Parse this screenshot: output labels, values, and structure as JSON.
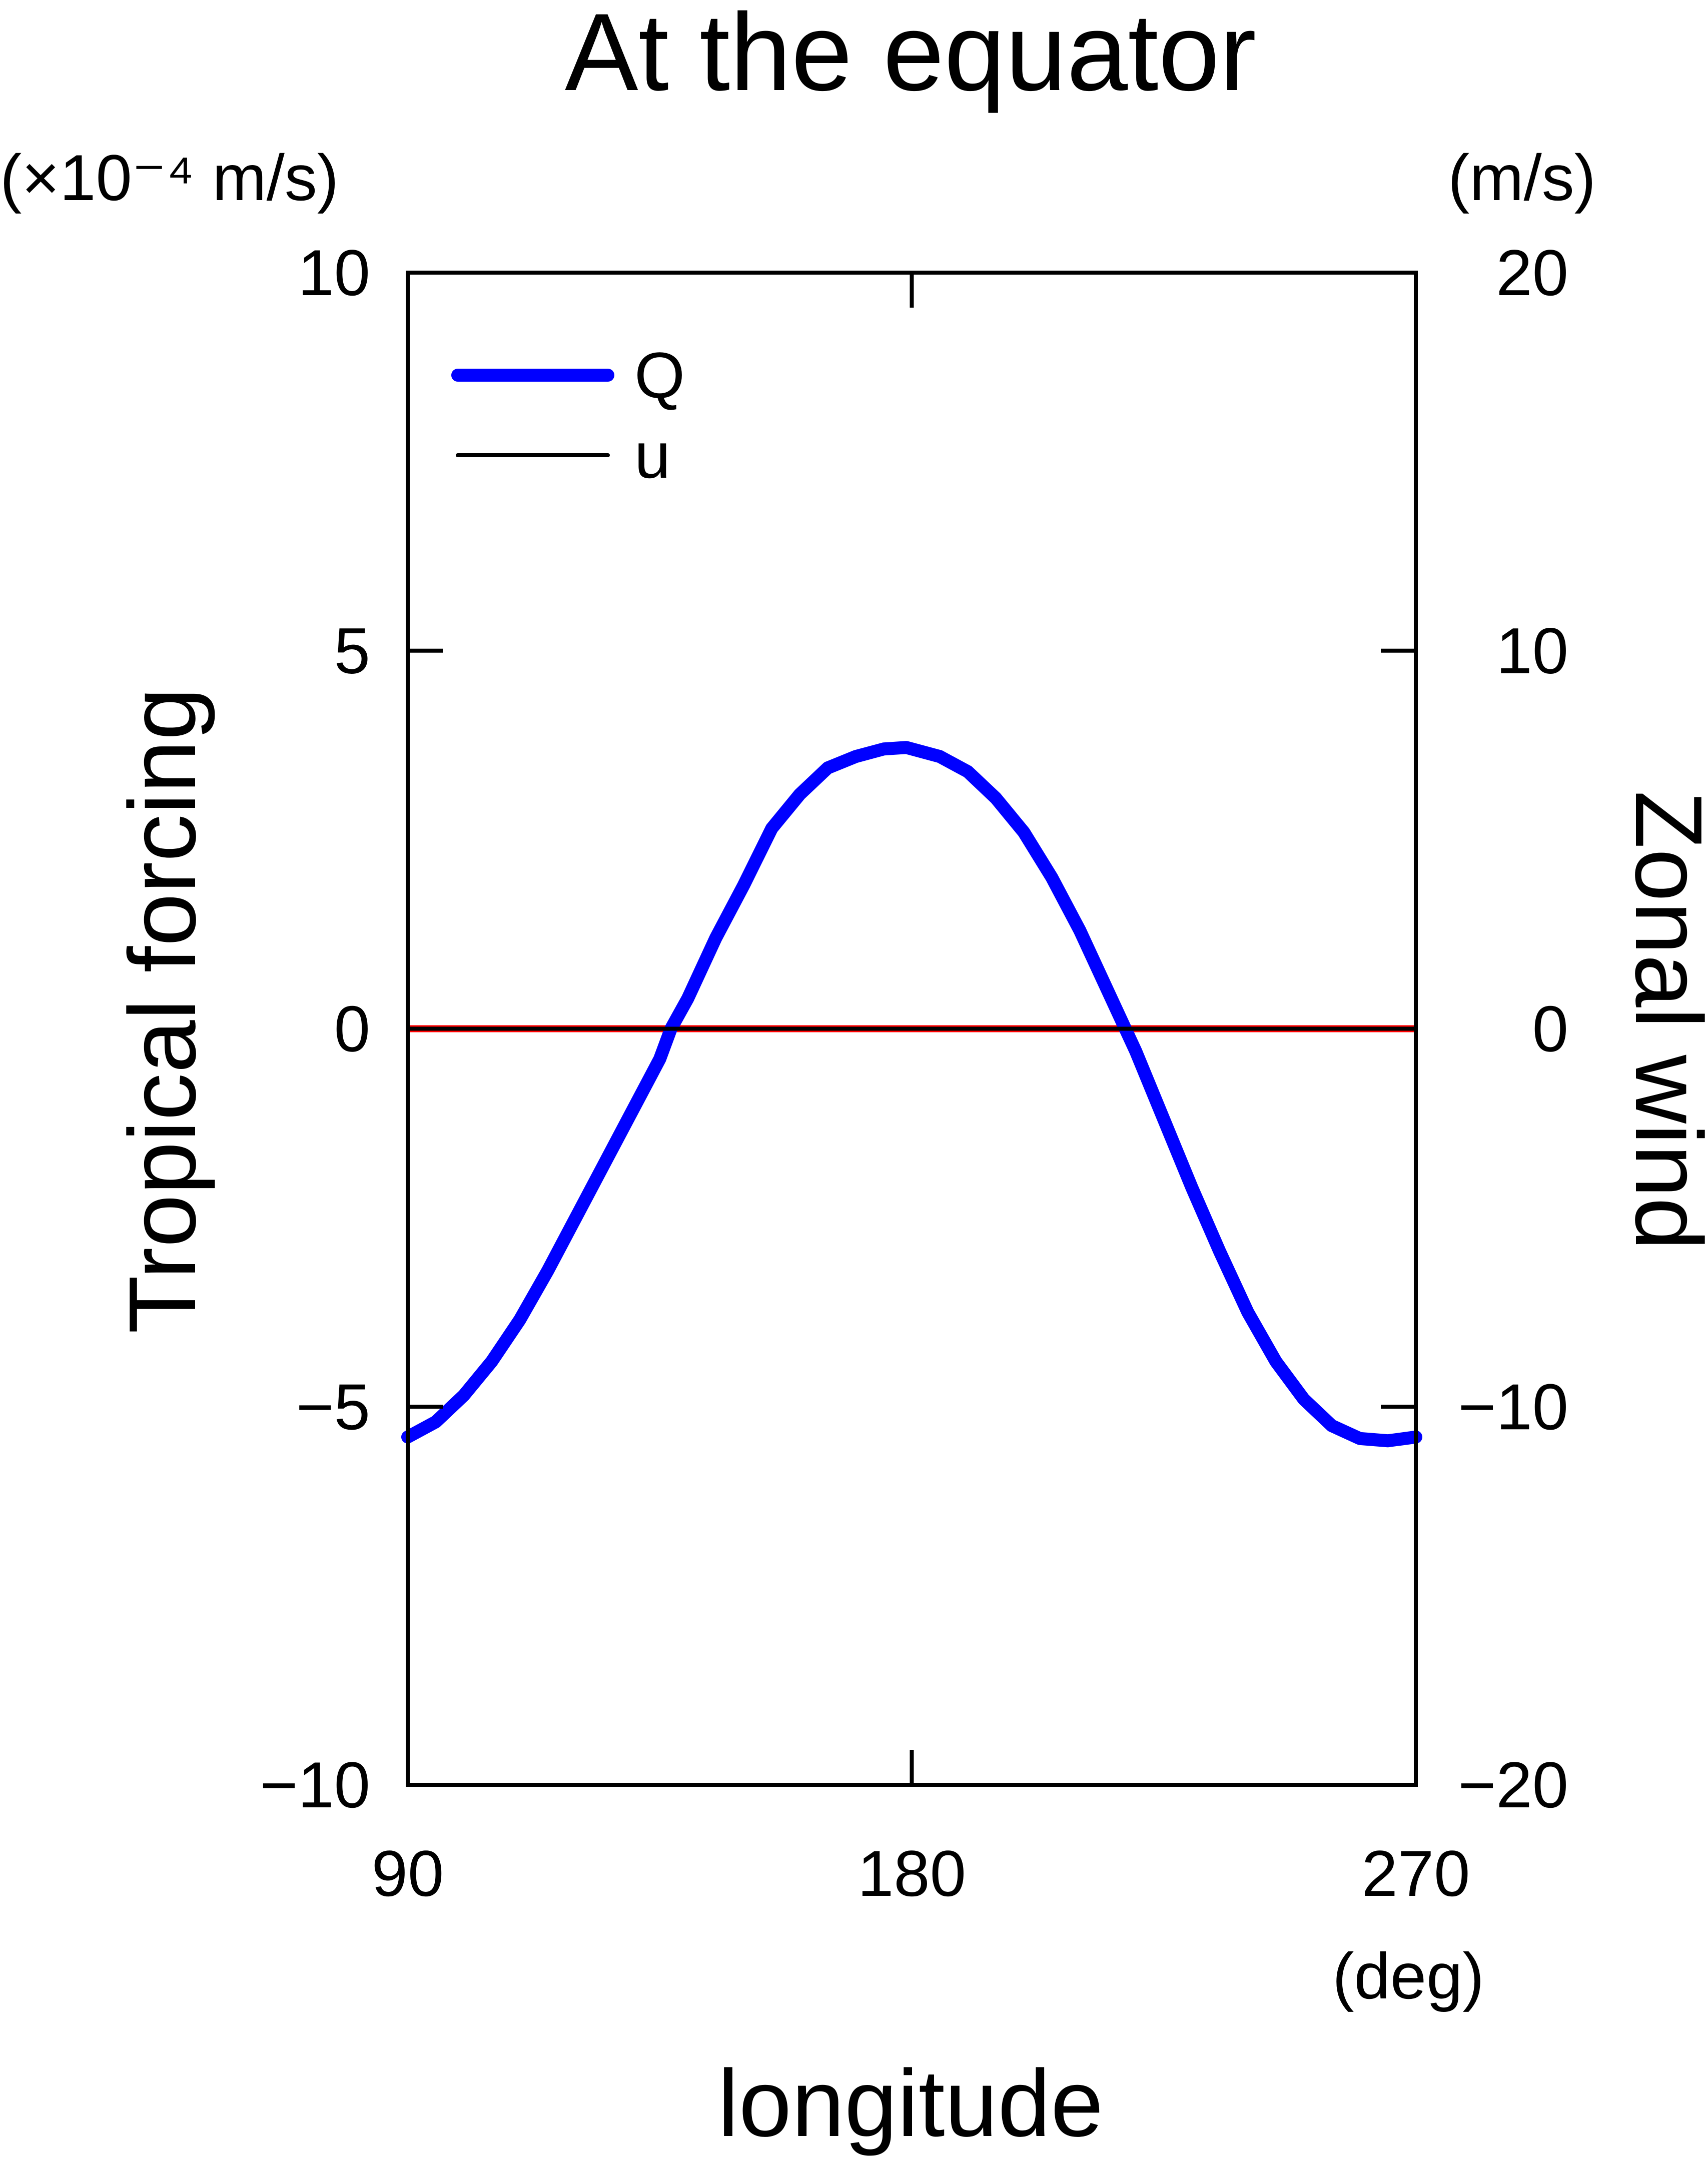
{
  "chart_data": {
    "type": "line",
    "title": "At the equator",
    "xlabel": "longitude",
    "xunit": "(deg)",
    "xlim": [
      90,
      270
    ],
    "xticks": [
      90,
      180,
      270
    ],
    "xtick_labels": [
      "90",
      "180",
      "270"
    ],
    "ylabel_left": "Tropical forcing",
    "yunit_left": "(×10⁻⁴ m/s)",
    "ylim_left": [
      -10,
      10
    ],
    "yticks_left": [
      -10,
      -5,
      0,
      5,
      10
    ],
    "ytick_labels_left": [
      "−10",
      "−5",
      "0",
      "5",
      "10"
    ],
    "ylabel_right": "Zonal wind",
    "yunit_right": "(m/s)",
    "ylim_right": [
      -20,
      20
    ],
    "yticks_right": [
      -20,
      -10,
      0,
      10,
      20
    ],
    "ytick_labels_right": [
      "−20",
      "−10",
      "0",
      "10",
      "20"
    ],
    "grid": false,
    "legend_position": "top-left",
    "series": [
      {
        "name": "Q",
        "axis": "left",
        "color": "#0000ff",
        "style": "solid-thick",
        "x": [
          90,
          95,
          100,
          105,
          110,
          115,
          120,
          125,
          130,
          135,
          137,
          140,
          145,
          150,
          155,
          160,
          165,
          170,
          175,
          179,
          185,
          190,
          195,
          200,
          205,
          210,
          215,
          220,
          225,
          230,
          235,
          240,
          245,
          250,
          255,
          260,
          265,
          270
        ],
        "values": [
          -5.4,
          -5.2,
          -4.85,
          -4.4,
          -3.85,
          -3.2,
          -2.5,
          -1.8,
          -1.1,
          -0.4,
          0.0,
          0.4,
          1.2,
          1.9,
          2.65,
          3.1,
          3.45,
          3.6,
          3.7,
          3.72,
          3.6,
          3.4,
          3.05,
          2.6,
          2.0,
          1.3,
          0.5,
          -0.3,
          -1.2,
          -2.1,
          -2.95,
          -3.75,
          -4.4,
          -4.9,
          -5.25,
          -5.42,
          -5.45,
          -5.4
        ]
      },
      {
        "name": "u",
        "axis": "right",
        "color": "#000000",
        "style": "solid-thin",
        "x": [
          90,
          270
        ],
        "values": [
          0,
          0
        ]
      }
    ],
    "overlays": [
      {
        "kind": "zero-line",
        "color": "#ff0000",
        "y": 0
      },
      {
        "kind": "zero-line-dashed",
        "color": "#000000",
        "y": 0
      }
    ]
  }
}
